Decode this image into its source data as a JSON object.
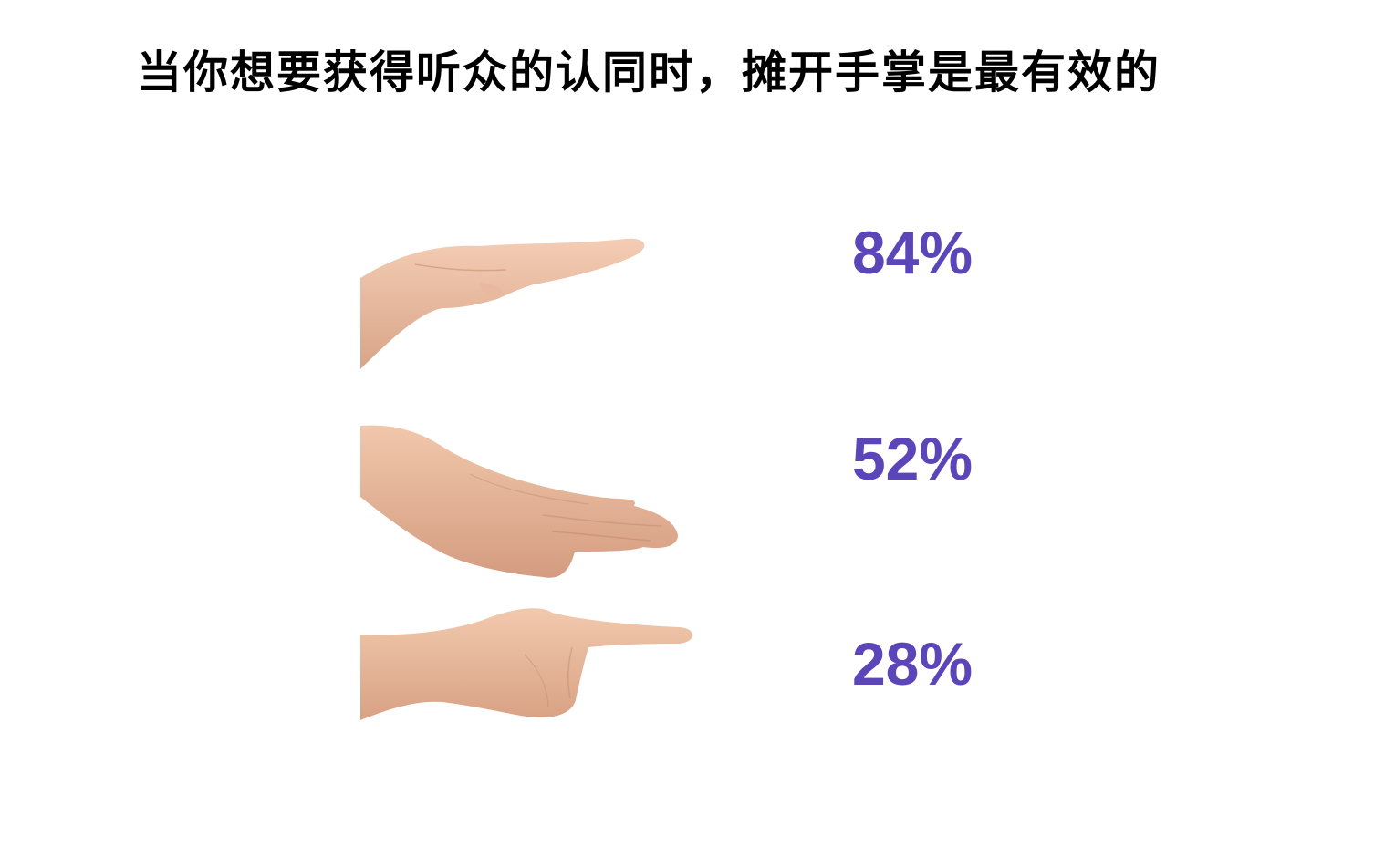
{
  "title": "当你想要获得听众的认同时，摊开手掌是最有效的",
  "accent_color": "#5b45b8",
  "rows": [
    {
      "icon": "open-palm-up-hand-icon",
      "percent": "84%"
    },
    {
      "icon": "palm-down-hand-icon",
      "percent": "52%"
    },
    {
      "icon": "pointing-finger-hand-icon",
      "percent": "28%"
    }
  ]
}
